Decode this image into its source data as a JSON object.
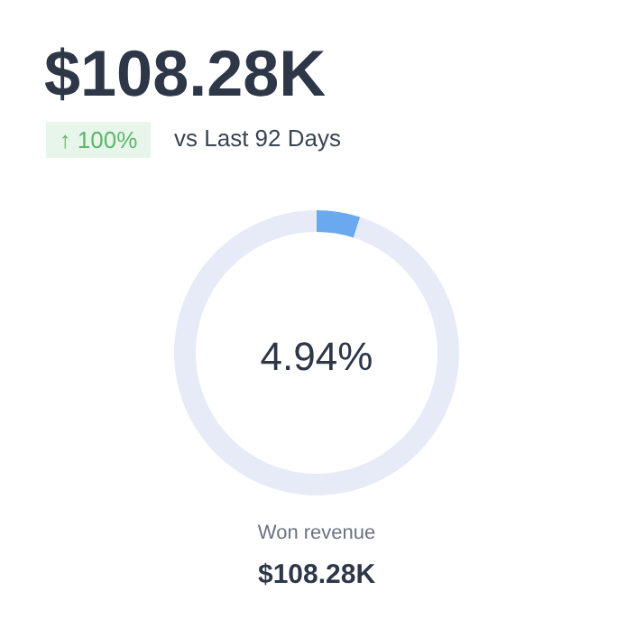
{
  "chart_data": {
    "type": "donut",
    "title": "$108.28K",
    "categories": [
      null,
      null
    ],
    "values": [
      4.94,
      95.06
    ],
    "colors": [
      "#6aa9f0",
      "#e6ebf7"
    ],
    "annotations": [
      "↑ 100%",
      "vs Last 92 Days",
      "4.94%",
      "Won revenue",
      "$108.28K"
    ]
  }
}
